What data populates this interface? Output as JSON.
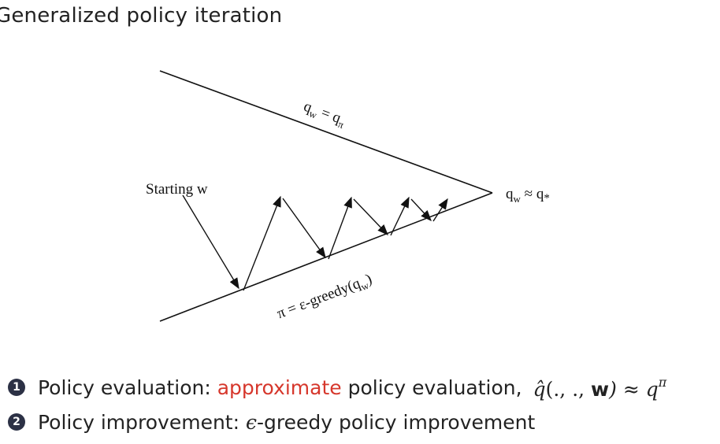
{
  "slide": {
    "title": "Generalized policy iteration"
  },
  "diagram": {
    "top_line_label": {
      "q": "q",
      "sub": "w",
      "rel": " = q",
      "sub2": "π"
    },
    "bottom_line_label": {
      "prefix": "π = ε-greedy(q",
      "sub": "w",
      "suffix": ")"
    },
    "start_label": "Starting w",
    "convergence_label": {
      "q": "q",
      "sub": "w",
      "rel": " ≈ q",
      "sub2": "*"
    }
  },
  "bullets": [
    {
      "number": "1",
      "prefix": "Policy evaluation: ",
      "highlight": "approximate",
      "suffix": " policy evaluation,",
      "math": {
        "hat": "q̂",
        "args": "(., ., ",
        "w": "w",
        "rel": ") ≈ q",
        "sup": "π"
      }
    },
    {
      "number": "2",
      "prefix": "Policy improvement: ",
      "epsilon": "ϵ",
      "suffix": "-greedy policy improvement"
    }
  ]
}
